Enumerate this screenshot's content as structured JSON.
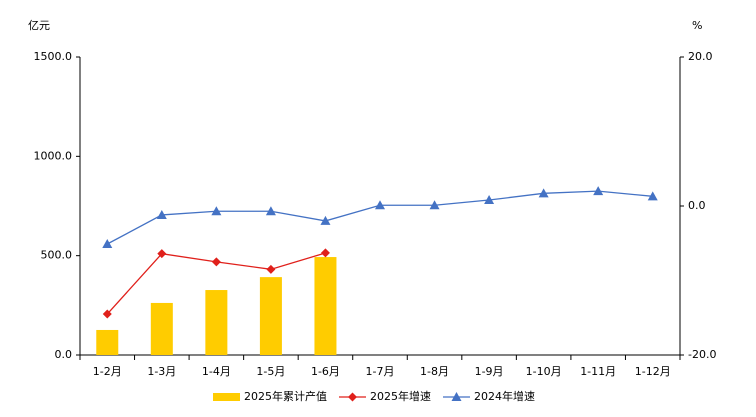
{
  "chart_data": {
    "type": "bar-line",
    "y_label": "亿元",
    "y2_label": "%",
    "categories": [
      "1-2月",
      "1-3月",
      "1-4月",
      "1-5月",
      "1-6月",
      "1-7月",
      "1-8月",
      "1-9月",
      "1-10月",
      "1-11月",
      "1-12月"
    ],
    "series": [
      {
        "name": "2025年累计产值",
        "type": "bar",
        "color": "#ffcc00",
        "values": [
          126,
          262,
          327,
          392,
          493,
          null,
          null,
          null,
          null,
          null,
          null
        ]
      },
      {
        "name": "2025年增速",
        "type": "line",
        "marker": "diamond",
        "axis": "y2",
        "color": "#e0201b",
        "values": [
          -14.5,
          -6.4,
          -7.5,
          -8.5,
          -6.3,
          null,
          null,
          null,
          null,
          null,
          null
        ]
      },
      {
        "name": "2024年增速",
        "type": "line",
        "marker": "triangle",
        "axis": "y2",
        "color": "#4472c4",
        "values": [
          -5.1,
          -1.2,
          -0.7,
          -0.7,
          -2.0,
          0.1,
          0.1,
          0.8,
          1.7,
          2.0,
          1.3
        ]
      }
    ],
    "ylim": [
      0,
      1500
    ],
    "yticks": [
      {
        "value": 0,
        "label": "0.0"
      },
      {
        "value": 500,
        "label": "500.0"
      },
      {
        "value": 1000,
        "label": "1000.0"
      },
      {
        "value": 1500,
        "label": "1500.0"
      }
    ],
    "y2lim": [
      -20,
      20
    ],
    "y2ticks": [
      {
        "value": -20,
        "label": "-20.0"
      },
      {
        "value": 0,
        "label": "0.0"
      },
      {
        "value": 20,
        "label": "20.0"
      }
    ],
    "legend": "bottom"
  }
}
